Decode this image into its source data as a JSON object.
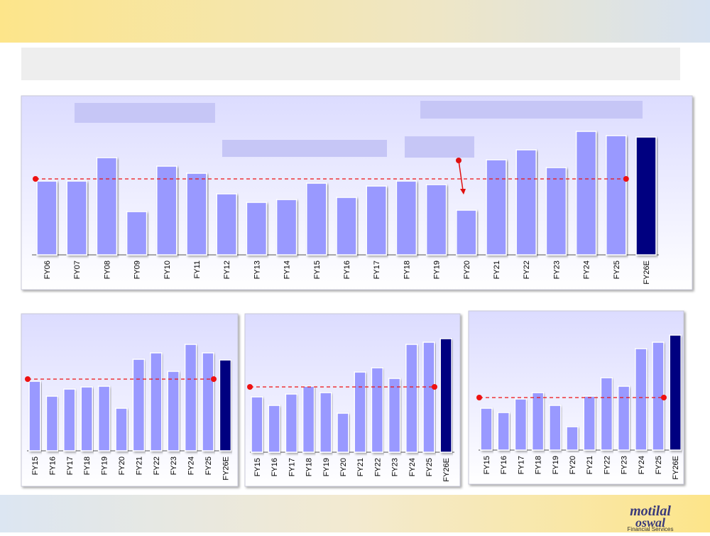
{
  "chart_data": [
    {
      "type": "bar",
      "categories": [
        "FY06",
        "FY07",
        "FY08",
        "FY09",
        "FY10",
        "FY11",
        "FY12",
        "FY13",
        "FY14",
        "FY15",
        "FY16",
        "FY17",
        "FY18",
        "FY19",
        "FY20",
        "FY21",
        "FY22",
        "FY23",
        "FY24",
        "FY25",
        "FY26E"
      ],
      "values": [
        104,
        104,
        137,
        61,
        125,
        115,
        86,
        74,
        78,
        101,
        81,
        97,
        104,
        99,
        63,
        134,
        148,
        123,
        174,
        168,
        166
      ],
      "colors": [
        "#9999ff",
        "#9999ff",
        "#9999ff",
        "#9999ff",
        "#9999ff",
        "#9999ff",
        "#9999ff",
        "#9999ff",
        "#9999ff",
        "#9999ff",
        "#9999ff",
        "#9999ff",
        "#9999ff",
        "#9999ff",
        "#9999ff",
        "#9999ff",
        "#9999ff",
        "#9999ff",
        "#9999ff",
        "#9999ff",
        "#000080"
      ],
      "reference_line": 107,
      "reference_color": "#ee1111"
    },
    {
      "type": "bar",
      "categories": [
        "FY15",
        "FY16",
        "FY17",
        "FY18",
        "FY19",
        "FY20",
        "FY21",
        "FY22",
        "FY23",
        "FY24",
        "FY25",
        "FY26E"
      ],
      "values": [
        98,
        77,
        87,
        90,
        91,
        60,
        129,
        138,
        112,
        150,
        138,
        128
      ],
      "colors": [
        "#9999ff",
        "#9999ff",
        "#9999ff",
        "#9999ff",
        "#9999ff",
        "#9999ff",
        "#9999ff",
        "#9999ff",
        "#9999ff",
        "#9999ff",
        "#9999ff",
        "#000080"
      ],
      "reference_line": 101,
      "reference_color": "#ee1111"
    },
    {
      "type": "bar",
      "categories": [
        "FY15",
        "FY16",
        "FY17",
        "FY18",
        "FY19",
        "FY20",
        "FY21",
        "FY22",
        "FY23",
        "FY24",
        "FY25",
        "FY26E"
      ],
      "values": [
        78,
        66,
        82,
        93,
        84,
        55,
        113,
        119,
        104,
        152,
        155,
        160
      ],
      "colors": [
        "#9999ff",
        "#9999ff",
        "#9999ff",
        "#9999ff",
        "#9999ff",
        "#9999ff",
        "#9999ff",
        "#9999ff",
        "#9999ff",
        "#9999ff",
        "#9999ff",
        "#000080"
      ],
      "reference_line": 92,
      "reference_color": "#ee1111"
    },
    {
      "type": "bar",
      "categories": [
        "FY15",
        "FY16",
        "FY17",
        "FY18",
        "FY19",
        "FY20",
        "FY21",
        "FY22",
        "FY23",
        "FY24",
        "FY25",
        "FY26E"
      ],
      "values": [
        59,
        53,
        72,
        81,
        63,
        33,
        76,
        102,
        90,
        143,
        152,
        162
      ],
      "colors": [
        "#9999ff",
        "#9999ff",
        "#9999ff",
        "#9999ff",
        "#9999ff",
        "#9999ff",
        "#9999ff",
        "#9999ff",
        "#9999ff",
        "#9999ff",
        "#9999ff",
        "#000080"
      ],
      "reference_line": 74,
      "reference_color": "#ee1111"
    }
  ],
  "logo": {
    "line1": "motilal",
    "line2": "oswal",
    "tagline": "Financial Services"
  }
}
